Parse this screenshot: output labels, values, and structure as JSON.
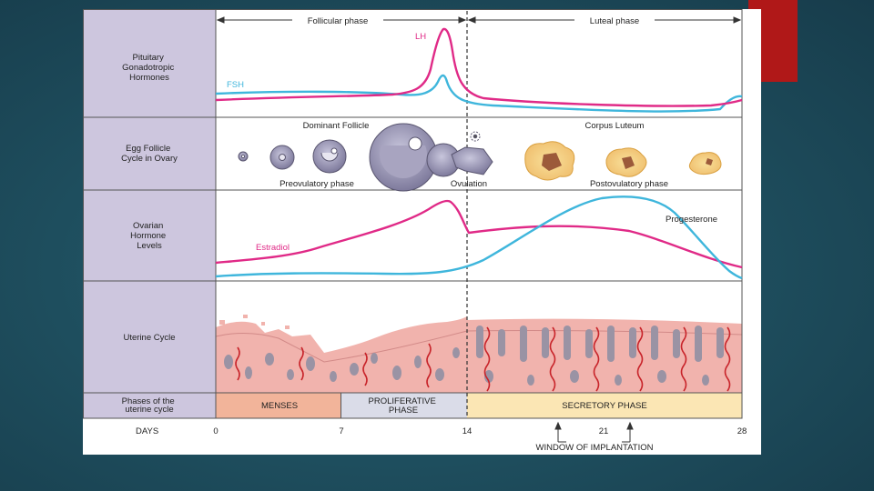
{
  "colors": {
    "magenta": "#e02a87",
    "cyan": "#3fb6dc",
    "label_column": "#cdc6de",
    "menses": "#f2b49a",
    "proliferative": "#dadce8",
    "secretory": "#fbe6b4",
    "slide_accent": "#b01818"
  },
  "phase_header": {
    "follicular": "Follicular phase",
    "luteal": "Luteal phase"
  },
  "rows": {
    "pituitary": [
      "Pituitary",
      "Gonadotropic",
      "Hormones"
    ],
    "egg": [
      "Egg Follicle",
      "Cycle in Ovary"
    ],
    "ovarian": [
      "Ovarian",
      "Hormone",
      "Levels"
    ],
    "uterine": [
      "Uterine Cycle"
    ],
    "phases": [
      "Phases of the",
      "uterine cycle"
    ]
  },
  "hormones": {
    "lh": "LH",
    "fsh": "FSH",
    "estradiol": "Estradiol",
    "progesterone": "Progesterone"
  },
  "follicle_labels": {
    "dominant": "Dominant Follicle",
    "corpus": "Corpus Luteum",
    "preovulatory": "Preovulatory phase",
    "ovulation": "Ovulation",
    "postovulatory": "Postovulatory phase"
  },
  "uterine_phases": {
    "menses": "MENSES",
    "proliferative": [
      "PROLIFERATIVE",
      "PHASE"
    ],
    "secretory": "SECRETORY PHASE"
  },
  "days": {
    "label": "DAYS",
    "ticks": [
      "0",
      "7",
      "14",
      "21",
      "28"
    ],
    "window": "WINDOW OF IMPLANTATION"
  }
}
